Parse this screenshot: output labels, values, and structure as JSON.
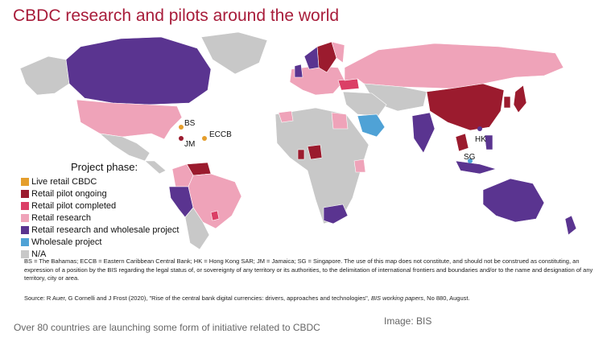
{
  "title": "CBDC research and pilots around the world",
  "legend": {
    "title": "Project phase:",
    "items": [
      {
        "label": "Live retail CBDC",
        "color": "#e59e2c"
      },
      {
        "label": "Retail pilot ongoing",
        "color": "#9b1b2e"
      },
      {
        "label": "Retail pilot completed",
        "color": "#db3f66"
      },
      {
        "label": "Retail research",
        "color": "#efa3b9"
      },
      {
        "label": "Retail research and wholesale project",
        "color": "#5a3490"
      },
      {
        "label": "Wholesale project",
        "color": "#4fa2d6"
      },
      {
        "label": "N/A",
        "color": "#c8c8c8"
      }
    ]
  },
  "map_labels": {
    "bs": "BS",
    "eccb": "ECCB",
    "jm": "JM",
    "hk": "HK",
    "sg": "SG"
  },
  "footnote": "BS = The Bahamas; ECCB = Eastern Caribbean Central Bank; HK = Hong Kong SAR; JM = Jamaica; SG = Singapore. The use of this map does not constitute, and should not be construed as constituting, an expression of a position by the BIS regarding the legal status of, or sovereignty of any territory or its authorities, to the delimitation of international frontiers and boundaries and/or to the name and designation of any territory, city or area.",
  "source": {
    "prefix": "Source: R Auer, G Cornelli and J Frost (2020), \"Rise of the central bank digital currencies: drivers, approaches and technologies\", ",
    "italic": "BIS working papers",
    "suffix": ", No 880, August."
  },
  "caption": "Over 80 countries are launching some form of initiative related to CBDC",
  "credit": "Image: BIS"
}
